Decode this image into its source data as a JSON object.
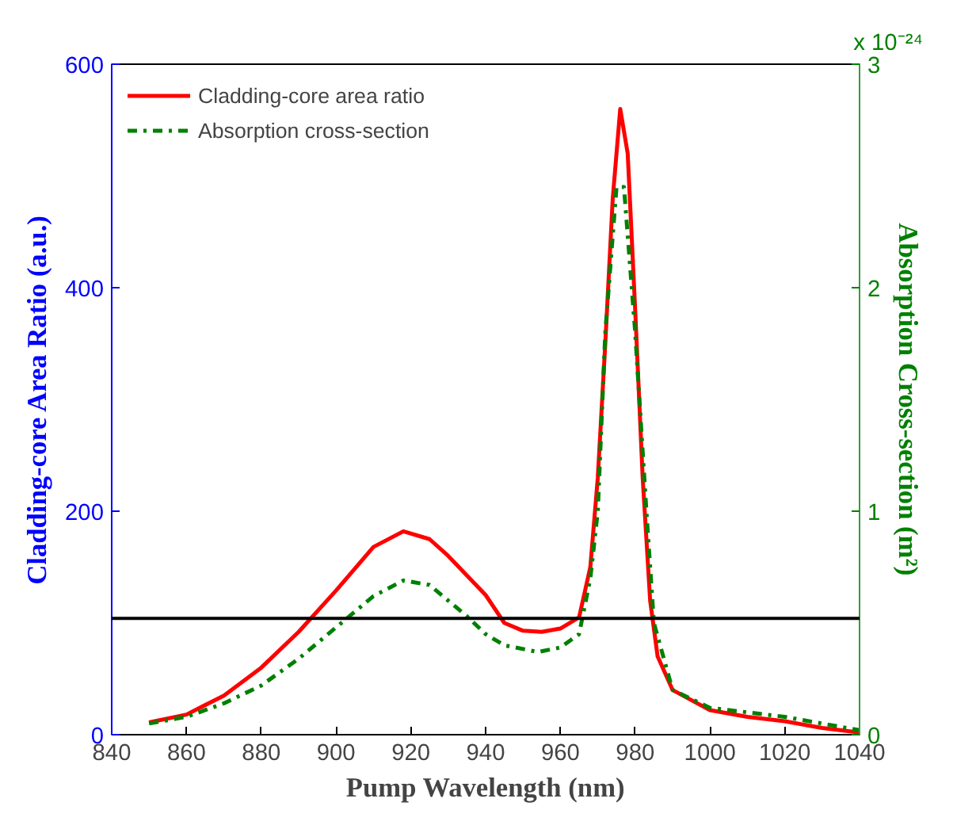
{
  "chart_data": {
    "type": "line",
    "xlabel": "Pump Wavelength (nm)",
    "ylabel": "Cladding-core Area Ratio (a.u.)",
    "y2label": "Absorption Cross-section (m²)",
    "annotations": [
      "x 10⁻²⁴"
    ],
    "xlim": [
      840,
      1040
    ],
    "xticks": [
      840,
      860,
      880,
      900,
      920,
      940,
      960,
      980,
      1000,
      1020,
      1040
    ],
    "ylim": [
      0,
      600
    ],
    "yticks": [
      0,
      200,
      400,
      600
    ],
    "y2lim": [
      0,
      3
    ],
    "y2ticks": [
      0,
      1,
      2,
      3
    ],
    "legend": "top left",
    "grid": false,
    "ref_lines": [
      {
        "axis": "y",
        "value": 104,
        "color": "#000000"
      }
    ],
    "series": [
      {
        "name": "Cladding-core area ratio",
        "color": "#ff0000",
        "line_style": "solid",
        "x": [
          850,
          860,
          870,
          880,
          890,
          900,
          910,
          918,
          925,
          930,
          940,
          945,
          950,
          955,
          960,
          965,
          968,
          970,
          972,
          974,
          976,
          978,
          980,
          982,
          984,
          986,
          990,
          1000,
          1010,
          1020,
          1030,
          1040
        ],
        "values": [
          11,
          18,
          35,
          60,
          92,
          129,
          168,
          182,
          175,
          160,
          125,
          100,
          93,
          92,
          95,
          105,
          150,
          230,
          350,
          480,
          560,
          520,
          380,
          230,
          120,
          70,
          40,
          22,
          16,
          12,
          6,
          2
        ]
      },
      {
        "name": "Absorption cross-section",
        "color": "#008000",
        "line_style": "dashdot",
        "axis": "y2",
        "x": [
          850,
          860,
          870,
          880,
          890,
          900,
          910,
          918,
          925,
          930,
          935,
          940,
          945,
          954,
          960,
          965,
          968,
          970,
          972,
          975,
          977,
          980,
          983,
          985,
          990,
          1000,
          1020,
          1040
        ],
        "values": [
          0.05,
          0.08,
          0.14,
          0.22,
          0.34,
          0.48,
          0.62,
          0.69,
          0.67,
          0.6,
          0.53,
          0.45,
          0.4,
          0.37,
          0.39,
          0.45,
          0.7,
          1.0,
          1.8,
          2.45,
          2.45,
          1.8,
          1.0,
          0.5,
          0.2,
          0.12,
          0.08,
          0.02
        ]
      }
    ]
  }
}
